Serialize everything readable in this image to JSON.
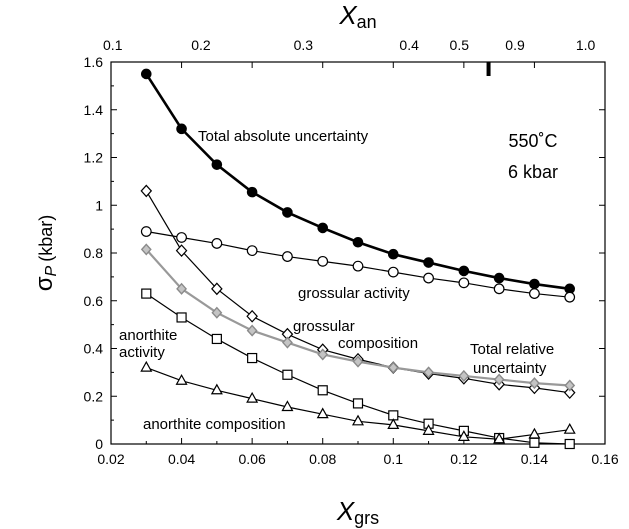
{
  "chart_data": {
    "type": "line",
    "xlabel": "X",
    "xlabel_sub": "grs",
    "ylabel": "σ",
    "ylabel_sub": "P",
    "ylabel_unit": "(kbar)",
    "top_axis_label": "X",
    "top_axis_label_sub": "an",
    "xlim": [
      0.02,
      0.16
    ],
    "ylim": [
      0,
      1.6
    ],
    "x_ticks": [
      "0.02",
      "0.04",
      "0.06",
      "0.08",
      "0.1",
      "0.12",
      "0.14",
      "0.16"
    ],
    "x_tick_values": [
      0.02,
      0.04,
      0.06,
      0.08,
      0.1,
      0.12,
      0.14,
      0.16
    ],
    "y_ticks": [
      "0",
      "0.2",
      "0.4",
      "0.6",
      "0.8",
      "1",
      "1.2",
      "1.4",
      "1.6"
    ],
    "y_tick_values": [
      0,
      0.2,
      0.4,
      0.6,
      0.8,
      1,
      1.2,
      1.4,
      1.6
    ],
    "top_ticks": [
      {
        "label": "0.1",
        "xgrs": 0.0205
      },
      {
        "label": "0.2",
        "xgrs": 0.0455
      },
      {
        "label": "0.3",
        "xgrs": 0.0745
      },
      {
        "label": "0.4",
        "xgrs": 0.1045
      },
      {
        "label": "0.5",
        "xgrs": 0.1187
      },
      {
        "label": "0.9",
        "xgrs": 0.1345
      },
      {
        "label": "1.0",
        "xgrs": 0.1545
      }
    ],
    "top_marker_xgrs": 0.127,
    "grid": false,
    "conditions": [
      "550˚C",
      "6 kbar"
    ],
    "x": [
      0.03,
      0.04,
      0.05,
      0.06,
      0.07,
      0.08,
      0.09,
      0.1,
      0.11,
      0.12,
      0.13,
      0.14,
      0.15
    ],
    "series": [
      {
        "name": "Total absolute uncertainty",
        "marker": "filled-circle",
        "color": "#000000",
        "values": [
          1.55,
          1.32,
          1.17,
          1.055,
          0.97,
          0.905,
          0.845,
          0.795,
          0.76,
          0.725,
          0.695,
          0.67,
          0.65
        ]
      },
      {
        "name": "grossular activity",
        "marker": "open-circle",
        "color": "#000000",
        "values": [
          0.89,
          0.865,
          0.84,
          0.81,
          0.785,
          0.765,
          0.745,
          0.72,
          0.695,
          0.675,
          0.65,
          0.63,
          0.615
        ]
      },
      {
        "name": "grossular composition",
        "marker": "open-diamond",
        "color": "#000000",
        "values": [
          1.06,
          0.81,
          0.65,
          0.535,
          0.46,
          0.395,
          0.355,
          0.32,
          0.295,
          0.275,
          0.25,
          0.235,
          0.215
        ]
      },
      {
        "name": "Total relative uncertainty",
        "marker": "gray-diamond",
        "color": "#999999",
        "values": [
          0.815,
          0.65,
          0.55,
          0.475,
          0.425,
          0.375,
          0.345,
          0.32,
          0.3,
          0.285,
          0.27,
          0.255,
          0.245
        ]
      },
      {
        "name": "anorthite activity",
        "marker": "open-square",
        "color": "#000000",
        "values": [
          0.63,
          0.53,
          0.44,
          0.36,
          0.29,
          0.225,
          0.17,
          0.12,
          0.085,
          0.055,
          0.025,
          0.005,
          0.0
        ]
      },
      {
        "name": "anorthite composition",
        "marker": "open-triangle",
        "color": "#000000",
        "values": [
          0.32,
          0.265,
          0.225,
          0.19,
          0.155,
          0.125,
          0.095,
          0.08,
          0.055,
          0.03,
          0.02,
          0.04,
          0.06
        ]
      }
    ],
    "annotations": [
      {
        "text": "Total absolute uncertainty",
        "series": 0
      },
      {
        "text": "grossular activity",
        "series": 1
      },
      {
        "text": "grossular",
        "series": 2
      },
      {
        "text": "composition",
        "series": 2
      },
      {
        "text": "Total relative",
        "series": 3
      },
      {
        "text": "uncertainty",
        "series": 3
      },
      {
        "text": "anorthite",
        "series": 4
      },
      {
        "text": "activity",
        "series": 4
      },
      {
        "text": "anorthite composition",
        "series": 5
      }
    ]
  }
}
